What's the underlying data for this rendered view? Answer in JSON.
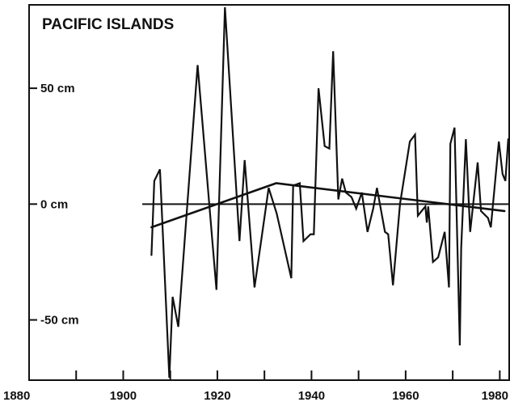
{
  "chart_data": {
    "type": "line",
    "title": "PACIFIC ISLANDS",
    "xlabel": "",
    "ylabel": "",
    "xlim": [
      1880,
      1982
    ],
    "ylim": [
      -76,
      86
    ],
    "grid": false,
    "legend": "none",
    "x_ticks": [
      1880,
      1890,
      1900,
      1910,
      1920,
      1930,
      1940,
      1950,
      1960,
      1970,
      1980
    ],
    "x_tick_labels": [
      "1880",
      "1900",
      "1920",
      "1940",
      "1960",
      "1980"
    ],
    "x_tick_label_values": [
      1880,
      1900,
      1920,
      1940,
      1960,
      1980
    ],
    "y_ticks": [
      50,
      0,
      -50
    ],
    "y_tick_labels": [
      "50 cm",
      "0 cm",
      "-50 cm"
    ],
    "zero_line": 0,
    "series": [
      {
        "x": [
          1906,
          1906.6,
          1907.8,
          1909.8,
          1910.5,
          1911.7,
          1915.8,
          1919.8,
          1921.6,
          1924.7,
          1925.8,
          1927.9,
          1930.9,
          1932.6,
          1935.7,
          1936.1,
          1937.5,
          1938.3,
          1939.8,
          1940.5,
          1941.5,
          1942.8,
          1943.8,
          1944.6,
          1945.7,
          1946.5,
          1947.3,
          1948.5,
          1949.5,
          1950.7,
          1951.9,
          1953.1,
          1953.9,
          1955.6,
          1956.3,
          1957.3,
          1958.8,
          1960.9,
          1962,
          1962.6,
          1964.2,
          1964.5,
          1964.8,
          1965.8,
          1966.9,
          1968.3,
          1969.2,
          1969.5,
          1970.4,
          1971.5,
          1971.8,
          1972.8,
          1973.7,
          1975.3,
          1976,
          1977.5,
          1978.1,
          1979.8,
          1980.6,
          1981.2,
          1981.8
        ],
        "y": [
          -22,
          10,
          15,
          -75,
          -40,
          -53,
          60,
          -37,
          85,
          -16,
          19,
          -36,
          7,
          -4,
          -32,
          8,
          9,
          -16,
          -13,
          -13,
          50,
          25,
          24,
          66,
          2,
          11,
          5,
          3,
          -2,
          5,
          -12,
          -2,
          7,
          -12,
          -13,
          -35,
          0,
          27,
          30,
          -5,
          -1,
          -8,
          -1,
          -25,
          -23,
          -12,
          -36,
          26,
          33,
          -61,
          -19,
          28,
          -12,
          18,
          -3,
          -6,
          -10,
          27,
          13,
          10,
          28
        ]
      },
      {
        "x": [
          1906,
          1932.5,
          1981
        ],
        "y": [
          -10,
          9,
          -3
        ]
      }
    ]
  }
}
